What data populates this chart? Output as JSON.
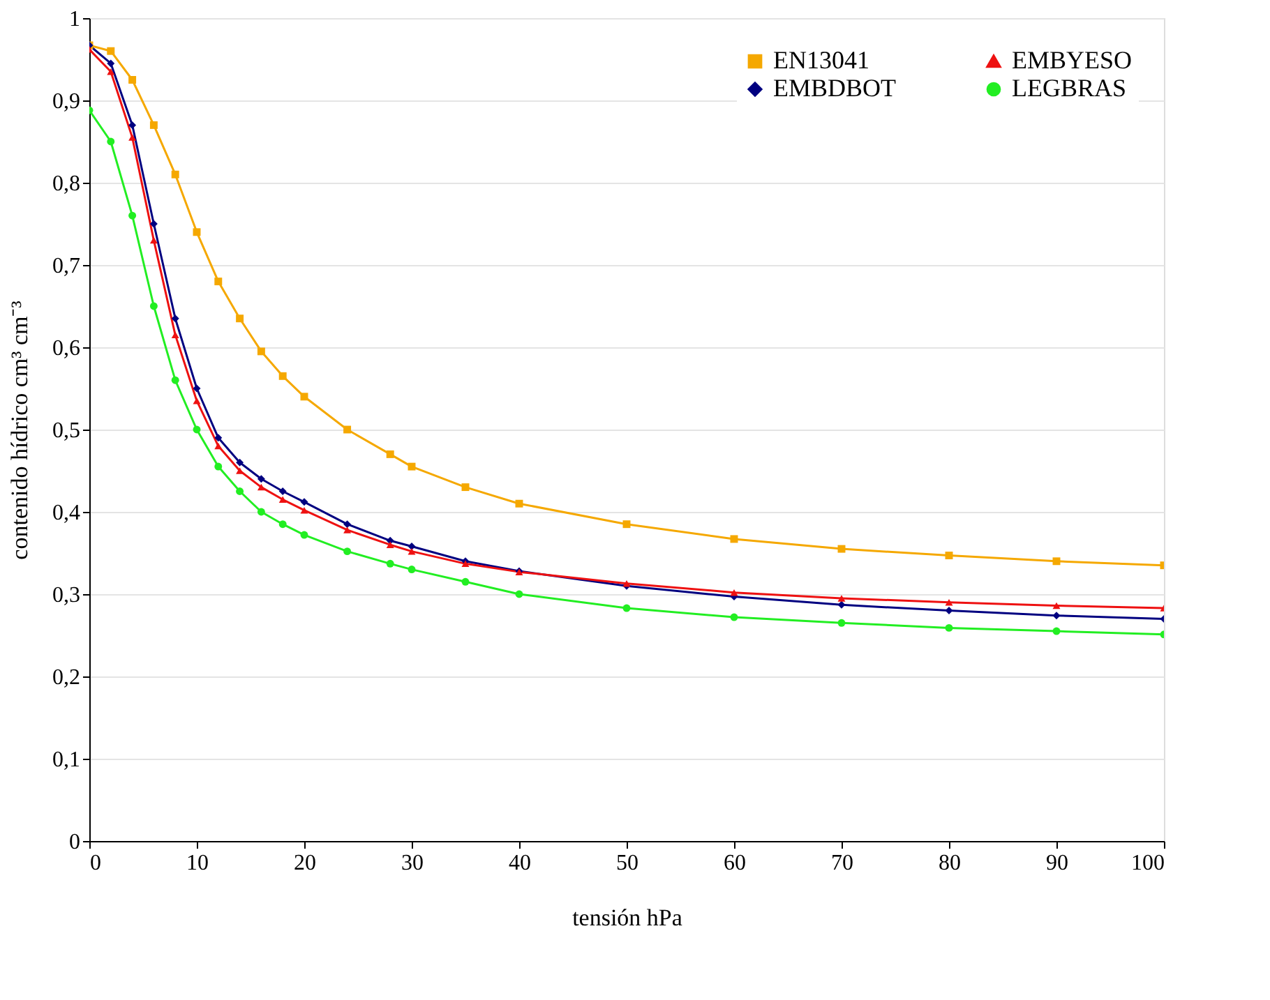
{
  "chart_data": {
    "type": "line",
    "xlabel": "tensión hPa",
    "ylabel": "contenido hídrico cm³ cm⁻³",
    "x": [
      0,
      2,
      4,
      6,
      8,
      10,
      12,
      14,
      16,
      18,
      20,
      24,
      28,
      30,
      35,
      40,
      50,
      60,
      70,
      80,
      90,
      100
    ],
    "series": [
      {
        "name": "EN13041",
        "color": "#f5a800",
        "marker": "square",
        "values": [
          0.967,
          0.96,
          0.925,
          0.87,
          0.81,
          0.74,
          0.68,
          0.635,
          0.595,
          0.565,
          0.54,
          0.5,
          0.47,
          0.455,
          0.43,
          0.41,
          0.385,
          0.367,
          0.355,
          0.347,
          0.34,
          0.335
        ]
      },
      {
        "name": "EMBDBOT",
        "color": "#000080",
        "marker": "diamond",
        "values": [
          0.967,
          0.945,
          0.87,
          0.75,
          0.635,
          0.55,
          0.49,
          0.46,
          0.44,
          0.425,
          0.412,
          0.385,
          0.365,
          0.358,
          0.34,
          0.328,
          0.31,
          0.297,
          0.287,
          0.28,
          0.274,
          0.27
        ]
      },
      {
        "name": "EMBYESO",
        "color": "#ee1111",
        "marker": "triangle",
        "values": [
          0.962,
          0.935,
          0.855,
          0.73,
          0.615,
          0.535,
          0.48,
          0.45,
          0.43,
          0.415,
          0.402,
          0.378,
          0.36,
          0.352,
          0.337,
          0.327,
          0.313,
          0.302,
          0.295,
          0.29,
          0.286,
          0.283
        ]
      },
      {
        "name": "LEGBRAS",
        "color": "#22ee22",
        "marker": "circle",
        "values": [
          0.888,
          0.85,
          0.76,
          0.65,
          0.56,
          0.5,
          0.455,
          0.425,
          0.4,
          0.385,
          0.372,
          0.352,
          0.337,
          0.33,
          0.315,
          0.3,
          0.283,
          0.272,
          0.265,
          0.259,
          0.255,
          0.251
        ]
      }
    ],
    "xlim": [
      0,
      100
    ],
    "xticks": [
      0,
      10,
      20,
      30,
      40,
      50,
      60,
      70,
      80,
      90,
      100
    ],
    "ylim": [
      0,
      1
    ],
    "yticks": [
      0,
      {
        "value": 0.1,
        "label": "0,1"
      },
      {
        "value": 0.2,
        "label": "0,2"
      },
      {
        "value": 0.3,
        "label": "0,3"
      },
      {
        "value": 0.4,
        "label": "0,4"
      },
      {
        "value": 0.5,
        "label": "0,5"
      },
      {
        "value": 0.6,
        "label": "0,6"
      },
      {
        "value": 0.7,
        "label": "0,7"
      },
      {
        "value": 0.8,
        "label": "0,8"
      },
      {
        "value": 0.9,
        "label": "0,9"
      },
      1
    ],
    "grid": "y",
    "legend": "top right",
    "line_style": "solid"
  }
}
